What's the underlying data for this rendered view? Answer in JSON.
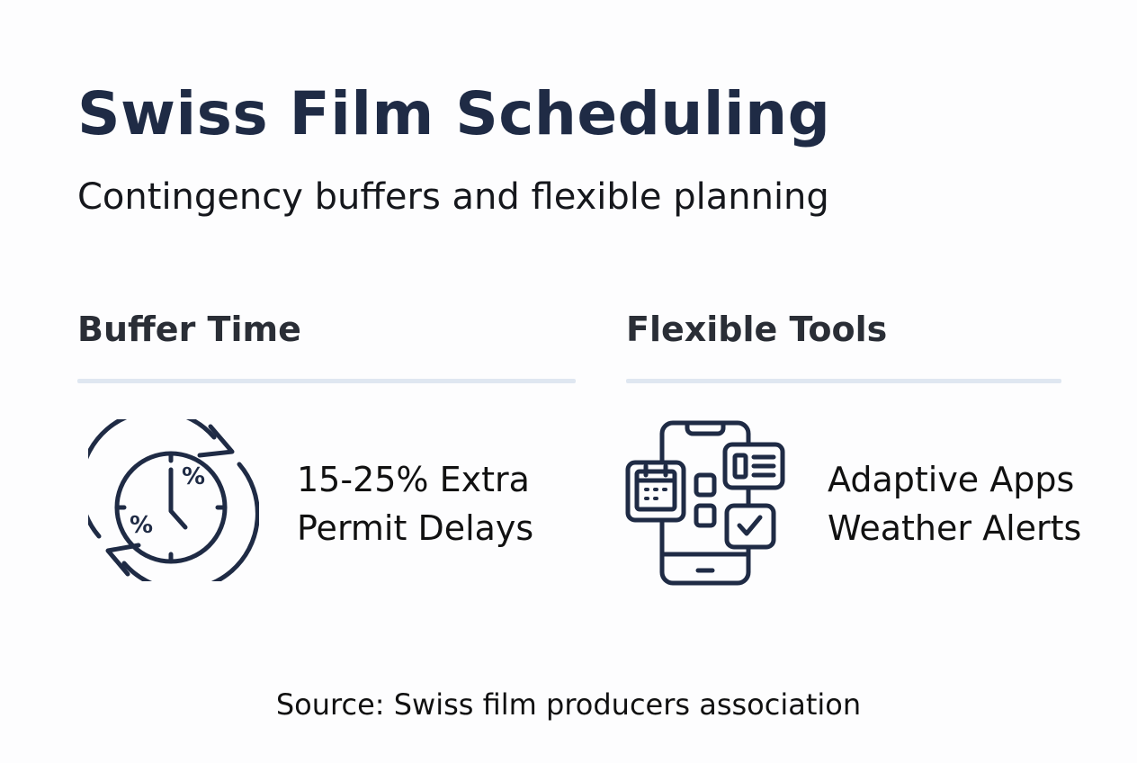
{
  "header": {
    "title": "Swiss Film Scheduling",
    "subtitle": "Contingency buffers and flexible planning"
  },
  "sections": [
    {
      "heading": "Buffer Time",
      "icon": "clock-cycle-percent-icon",
      "lines": [
        "15-25% Extra",
        "Permit Delays"
      ]
    },
    {
      "heading": "Flexible Tools",
      "icon": "smartphone-apps-icon",
      "lines": [
        "Adaptive Apps",
        "Weather Alerts"
      ]
    }
  ],
  "footer": {
    "source": "Source: Swiss film producers association"
  },
  "colors": {
    "title": "#1f2b45",
    "icon": "#1f2b45",
    "divider": "#dfe7f1"
  }
}
